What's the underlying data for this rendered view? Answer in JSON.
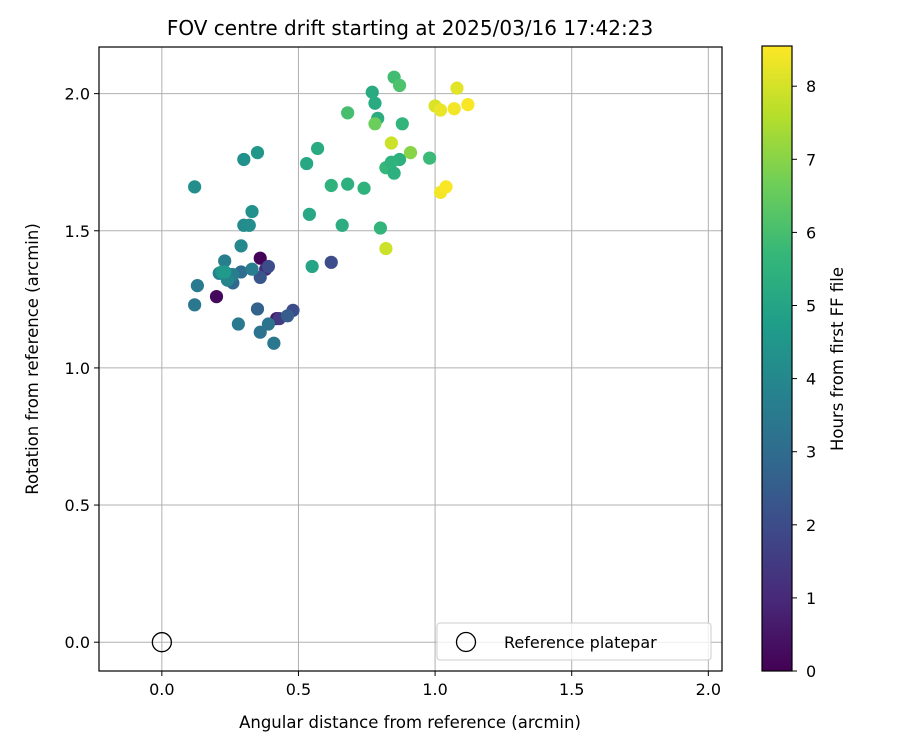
{
  "chart_data": {
    "type": "scatter",
    "title": "FOV centre drift starting at 2025/03/16 17:42:23",
    "xlabel": "Angular distance from reference (arcmin)",
    "ylabel": "Rotation from reference (arcmin)",
    "xlim": [
      -0.23,
      2.05
    ],
    "ylim": [
      -0.105,
      2.17
    ],
    "xticks": [
      0.0,
      0.5,
      1.0,
      1.5,
      2.0
    ],
    "xtick_labels": [
      "0.0",
      "0.5",
      "1.0",
      "1.5",
      "2.0"
    ],
    "yticks": [
      0.0,
      0.5,
      1.0,
      1.5,
      2.0
    ],
    "ytick_labels": [
      "0.0",
      "0.5",
      "1.0",
      "1.5",
      "2.0"
    ],
    "grid": true,
    "colormap": "viridis",
    "colorbar": {
      "label": "Hours from first FF file",
      "range": [
        0,
        8.55
      ],
      "ticks": [
        0,
        1,
        2,
        3,
        4,
        5,
        6,
        7,
        8
      ],
      "tick_labels": [
        "0",
        "1",
        "2",
        "3",
        "4",
        "5",
        "6",
        "7",
        "8"
      ]
    },
    "legend": {
      "placement": "lower right",
      "entries": [
        {
          "label": "Reference platepar",
          "marker": "open-circle",
          "color": "#000000"
        }
      ]
    },
    "reference_point": {
      "x": 0.0,
      "y": 0.0
    },
    "series": [
      {
        "x": [
          0.36,
          0.2,
          0.42,
          0.38,
          0.43,
          0.48,
          0.62,
          0.39,
          0.36,
          0.46,
          0.35,
          0.23,
          0.26,
          0.29,
          0.36,
          0.39,
          0.41,
          0.12,
          0.13,
          0.28,
          0.33,
          0.25,
          0.26,
          0.23,
          0.21,
          0.24,
          0.29,
          0.3,
          0.32,
          0.33,
          0.12,
          0.3,
          0.35,
          0.22,
          0.23,
          0.55,
          0.54,
          0.53,
          0.57,
          0.66,
          0.68,
          0.62,
          0.74,
          0.8,
          0.82,
          0.85,
          0.87,
          0.84,
          0.98,
          0.79,
          0.78,
          0.77,
          0.88,
          0.68,
          0.85,
          0.87,
          0.78,
          0.91,
          0.84,
          0.82,
          1.0,
          1.02,
          1.07,
          1.08,
          1.12,
          1.02,
          1.04
        ],
        "y": [
          1.4,
          1.26,
          1.18,
          1.36,
          1.18,
          1.21,
          1.385,
          1.37,
          1.33,
          1.19,
          1.215,
          1.35,
          1.31,
          1.35,
          1.13,
          1.16,
          1.09,
          1.23,
          1.3,
          1.16,
          1.36,
          1.34,
          1.34,
          1.39,
          1.345,
          1.32,
          1.445,
          1.52,
          1.52,
          1.57,
          1.66,
          1.76,
          1.785,
          1.35,
          1.35,
          1.37,
          1.56,
          1.745,
          1.8,
          1.52,
          1.67,
          1.665,
          1.655,
          1.51,
          1.73,
          1.71,
          1.76,
          1.75,
          1.765,
          1.91,
          1.965,
          2.005,
          1.89,
          1.93,
          2.06,
          2.03,
          1.89,
          1.785,
          1.82,
          1.435,
          1.955,
          1.94,
          1.945,
          2.02,
          1.96,
          1.64,
          1.66
        ],
        "hours": [
          0.1,
          0.2,
          0.6,
          1.0,
          1.5,
          2.0,
          2.0,
          2.0,
          2.3,
          2.5,
          2.7,
          2.8,
          2.9,
          3.0,
          3.2,
          3.3,
          3.4,
          3.4,
          3.5,
          3.5,
          3.6,
          3.6,
          3.7,
          3.7,
          3.8,
          3.9,
          4.0,
          4.1,
          4.2,
          4.3,
          4.2,
          4.3,
          4.5,
          4.5,
          4.6,
          5.0,
          5.1,
          5.1,
          5.2,
          5.3,
          5.4,
          5.5,
          5.5,
          5.6,
          5.7,
          5.4,
          5.4,
          5.5,
          5.8,
          5.3,
          5.2,
          5.2,
          5.6,
          6.0,
          5.9,
          6.1,
          6.6,
          7.0,
          7.9,
          7.9,
          8.1,
          8.3,
          8.4,
          8.2,
          8.5,
          8.4,
          8.5
        ]
      }
    ]
  }
}
